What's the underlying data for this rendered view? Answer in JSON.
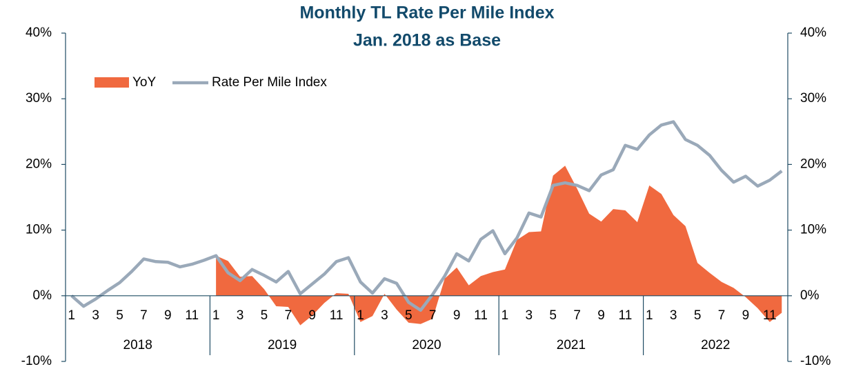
{
  "chart_data": {
    "type": "line",
    "title": "Monthly TL Rate Per Mile Index",
    "subtitle": "Jan. 2018 as Base",
    "categories": [
      "1",
      null,
      "3",
      null,
      "5",
      null,
      "7",
      null,
      "9",
      null,
      "11",
      null,
      "1",
      null,
      "3",
      null,
      "5",
      null,
      "7",
      null,
      "9",
      null,
      "11",
      null,
      "1",
      null,
      "3",
      null,
      "5",
      null,
      "7",
      null,
      "9",
      null,
      "11",
      null,
      "1",
      null,
      "3",
      null,
      "5",
      null,
      "7",
      null,
      "9",
      null,
      "11",
      null,
      "1",
      null,
      "3",
      null,
      "5",
      null,
      "7",
      null,
      "9",
      null,
      "11",
      null
    ],
    "category_groups": [
      "2018",
      "2019",
      "2020",
      "2021",
      "2022"
    ],
    "series": [
      {
        "name": "YoY",
        "type": "area",
        "color": "#f0693f",
        "axis": "y",
        "values": [
          null,
          null,
          null,
          null,
          null,
          null,
          null,
          null,
          null,
          null,
          null,
          null,
          6.1,
          5.3,
          2.9,
          3,
          1,
          -1.6,
          -1.7,
          -4.5,
          -3,
          -1.1,
          0.4,
          0.3,
          -4,
          -3.1,
          0.3,
          -2.1,
          -4.1,
          -4.3,
          -3.5,
          2.6,
          4.3,
          1.6,
          3,
          3.6,
          4,
          8.5,
          9.7,
          9.8,
          18.3,
          19.8,
          16.3,
          12.5,
          11.3,
          13.2,
          13,
          11.2,
          16.8,
          15.5,
          12.3,
          10.6,
          5,
          3.5,
          2.1,
          1.2,
          -0.2,
          -1.9,
          -4,
          -2.6
        ]
      },
      {
        "name": "Rate Per Mile Index",
        "type": "line",
        "color": "#9aa9b9",
        "axis": "y2",
        "values": [
          0,
          -1.6,
          -0.5,
          0.8,
          2,
          3.7,
          5.6,
          5.2,
          5.1,
          4.4,
          4.8,
          5.4,
          6.1,
          3.5,
          2.3,
          4,
          3.1,
          2.1,
          3.7,
          0.3,
          1.8,
          3.3,
          5.2,
          5.8,
          2.1,
          0.4,
          2.6,
          1.9,
          -1,
          -2.2,
          0.2,
          3,
          6.4,
          5.3,
          8.6,
          9.9,
          6.4,
          8.8,
          12.6,
          12,
          16.8,
          17.2,
          16.8,
          16,
          18.4,
          19.2,
          22.9,
          22.3,
          24.5,
          26,
          26.5,
          23.8,
          22.9,
          21.4,
          19.1,
          17.3,
          18.2,
          16.7,
          17.6,
          19
        ]
      }
    ],
    "ylim": [
      -10,
      40
    ],
    "yticks": [
      {
        "value": -10,
        "label": "-10%"
      },
      {
        "value": 0,
        "label": "0%"
      },
      {
        "value": 10,
        "label": "10%"
      },
      {
        "value": 20,
        "label": "20%"
      },
      {
        "value": 30,
        "label": "30%"
      },
      {
        "value": 40,
        "label": "40%"
      }
    ],
    "y2lim": [
      -10,
      40
    ],
    "y2ticks": [
      {
        "value": -10,
        "label": "-10%"
      },
      {
        "value": 0,
        "label": "0%"
      },
      {
        "value": 10,
        "label": "10%"
      },
      {
        "value": 20,
        "label": "20%"
      },
      {
        "value": 30,
        "label": "30%"
      },
      {
        "value": 40,
        "label": "40%"
      }
    ],
    "legend": "top-left",
    "grid": false
  }
}
